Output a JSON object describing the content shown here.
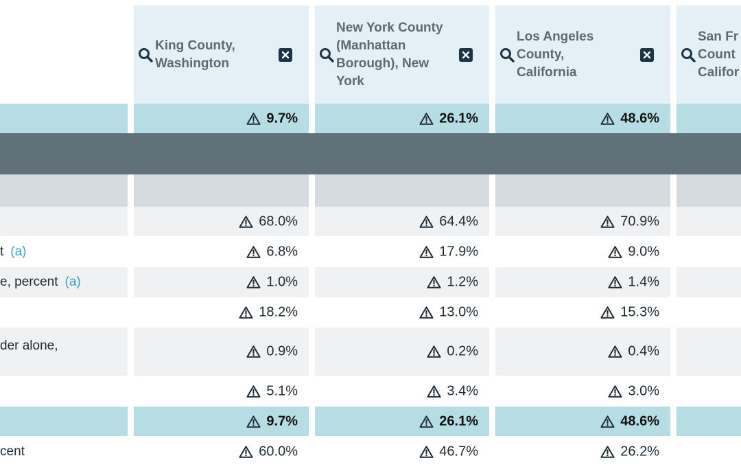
{
  "columns": [
    {
      "name": "King County, Washington",
      "lines": [
        "King County,",
        "Washington"
      ]
    },
    {
      "name": "New York County (Manhattan Borough), New York",
      "lines": [
        "New York County",
        "(Manhattan",
        "Borough), New",
        "York"
      ]
    },
    {
      "name": "Los Angeles County, California",
      "lines": [
        "Los Angeles",
        "County,",
        "California"
      ]
    },
    {
      "name": "San Francisco County, California",
      "lines": [
        "San Fr",
        "Count",
        "Califor"
      ]
    }
  ],
  "rows": [
    {
      "label": "",
      "values": [
        "9.7%",
        "26.1%",
        "48.6%"
      ],
      "highlight": true
    },
    {
      "label": "",
      "values": [
        "68.0%",
        "64.4%",
        "70.9%"
      ]
    },
    {
      "label": "t",
      "footnote": "(a)",
      "values": [
        "6.8%",
        "17.9%",
        "9.0%"
      ]
    },
    {
      "label": "e, percent",
      "footnote": "(a)",
      "values": [
        "1.0%",
        "1.2%",
        "1.4%"
      ]
    },
    {
      "label": "",
      "values": [
        "18.2%",
        "13.0%",
        "15.3%"
      ]
    },
    {
      "label": "der alone,",
      "values": [
        "0.9%",
        "0.2%",
        "0.4%"
      ]
    },
    {
      "label": "",
      "values": [
        "5.1%",
        "3.4%",
        "3.0%"
      ]
    },
    {
      "label": "",
      "values": [
        "9.7%",
        "26.1%",
        "48.6%"
      ],
      "highlight": true
    },
    {
      "label": "cent",
      "values": [
        "60.0%",
        "46.7%",
        "26.2%"
      ]
    }
  ],
  "icons": {
    "search": "search-icon",
    "remove": "close-icon",
    "warning": "warning-triangle-icon"
  },
  "colors": {
    "header_bg": "#e4f0f6",
    "highlight_bg": "#b7dde4",
    "band_bg": "#617179",
    "subhead_bg": "#d6dbdf",
    "stripe_bg": "#f0f1f3",
    "footnote": "#3aa0bd",
    "close_bg": "#1d3446"
  }
}
